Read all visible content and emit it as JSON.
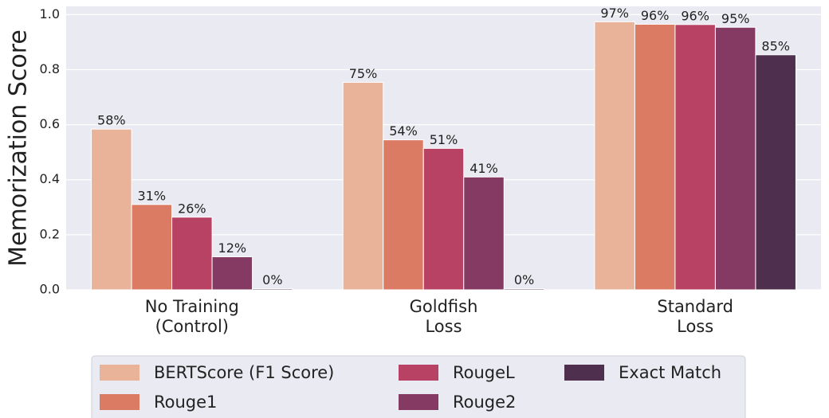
{
  "chart_data": {
    "type": "bar",
    "y_label": "Memorization Score",
    "categories": [
      "No Training\n(Control)",
      "Goldfish\nLoss",
      "Standard\nLoss"
    ],
    "series": [
      {
        "name": "BERTScore (F1 Score)",
        "color": "#e8b398",
        "values": [
          0.584,
          0.754,
          0.974
        ],
        "value_labels": [
          "58%",
          "75%",
          "97%"
        ]
      },
      {
        "name": "Rouge1",
        "color": "#dc7b64",
        "values": [
          0.31,
          0.545,
          0.965
        ],
        "value_labels": [
          "31%",
          "54%",
          "96%"
        ]
      },
      {
        "name": "RougeL",
        "color": "#b84263",
        "values": [
          0.264,
          0.514,
          0.964
        ],
        "value_labels": [
          "26%",
          "51%",
          "96%"
        ]
      },
      {
        "name": "Rouge2",
        "color": "#843a63",
        "values": [
          0.12,
          0.41,
          0.954
        ],
        "value_labels": [
          "12%",
          "41%",
          "95%"
        ]
      },
      {
        "name": "Exact Match",
        "color": "#4e2f4d",
        "values": [
          0.004,
          0.004,
          0.854
        ],
        "value_labels": [
          "0%",
          "0%",
          "85%"
        ]
      }
    ],
    "ylim": [
      0,
      1.03
    ],
    "yticks": [
      {
        "value": 0,
        "label": "0.0"
      },
      {
        "value": 0.2,
        "label": "0.2"
      },
      {
        "value": 0.4,
        "label": "0.4"
      },
      {
        "value": 0.6,
        "label": "0.6"
      },
      {
        "value": 0.8,
        "label": "0.8"
      },
      {
        "value": 1,
        "label": "1.0"
      }
    ],
    "grid": true,
    "legend": "lower center"
  }
}
